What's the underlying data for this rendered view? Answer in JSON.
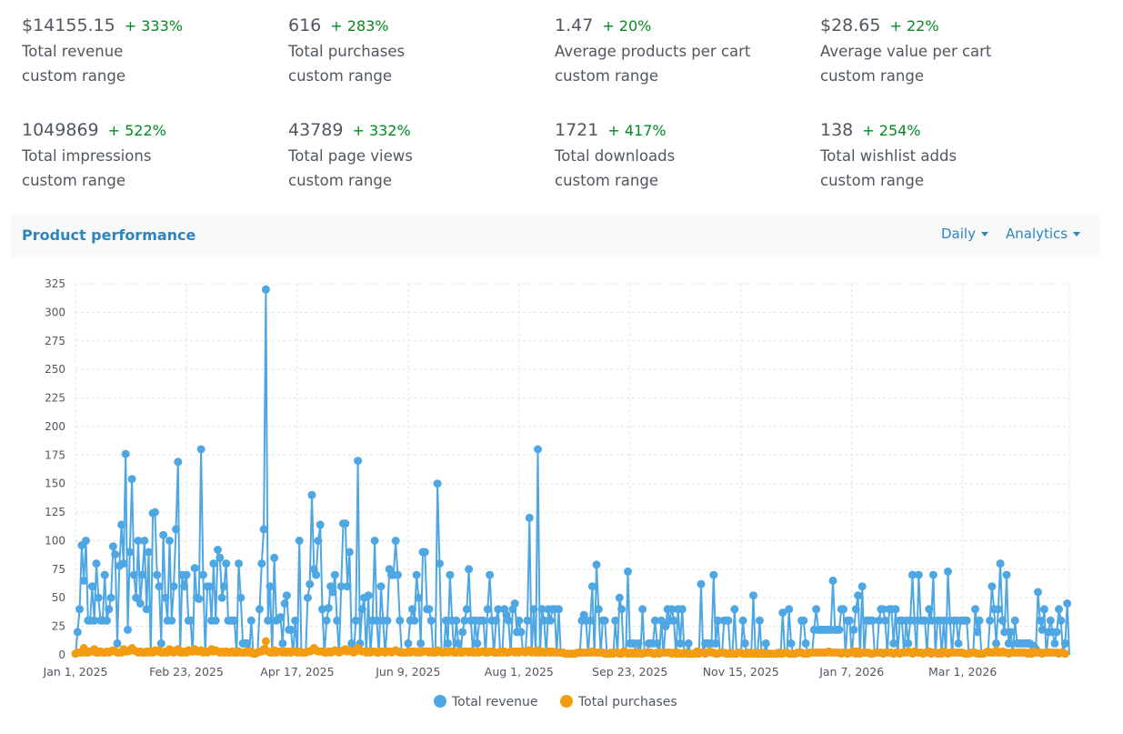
{
  "stats": [
    {
      "value": "$14155.15",
      "change": "+ 333%",
      "label": "Total revenue",
      "range": "custom range"
    },
    {
      "value": "616",
      "change": "+ 283%",
      "label": "Total purchases",
      "range": "custom range"
    },
    {
      "value": "1.47",
      "change": "+ 20%",
      "label": "Average products per cart",
      "range": "custom range"
    },
    {
      "value": "$28.65",
      "change": "+ 22%",
      "label": "Average value per cart",
      "range": "custom range"
    },
    {
      "value": "1049869",
      "change": "+ 522%",
      "label": "Total impressions",
      "range": "custom range"
    },
    {
      "value": "43789",
      "change": "+ 332%",
      "label": "Total page views",
      "range": "custom range"
    },
    {
      "value": "1721",
      "change": "+ 417%",
      "label": "Total downloads",
      "range": "custom range"
    },
    {
      "value": "138",
      "change": "+ 254%",
      "label": "Total wishlist adds",
      "range": "custom range"
    }
  ],
  "panel": {
    "title": "Product performance",
    "interval_label": "Daily",
    "view_label": "Analytics"
  },
  "colors": {
    "revenue": "#4ea6e2",
    "purchases": "#f39c12",
    "change": "#008a20",
    "accent": "#2e85bd"
  },
  "chart_data": {
    "type": "line",
    "title": "",
    "xlabel": "",
    "ylabel": "",
    "x_start": "2025-01-01",
    "x_end": "2026-04-22",
    "x_ticks": [
      "Jan 1, 2025",
      "Feb 23, 2025",
      "Apr 17, 2025",
      "Jun 9, 2025",
      "Aug 1, 2025",
      "Sep 23, 2025",
      "Nov 15, 2025",
      "Jan 7, 2026",
      "Mar 1, 2026"
    ],
    "y_ticks": [
      0,
      25,
      50,
      75,
      100,
      125,
      150,
      175,
      200,
      225,
      250,
      275,
      300,
      325
    ],
    "ylim": [
      0,
      325
    ],
    "grid": true,
    "legend_position": "bottom",
    "series": [
      {
        "name": "Total revenue",
        "values": [
          0,
          20,
          40,
          96,
          65,
          100,
          30,
          30,
          60,
          30,
          80,
          50,
          30,
          30,
          70,
          30,
          40,
          50,
          95,
          88,
          10,
          78,
          114,
          80,
          176,
          22,
          90,
          154,
          70,
          50,
          100,
          45,
          70,
          100,
          40,
          90,
          0,
          124,
          125,
          70,
          60,
          10,
          105,
          50,
          30,
          100,
          30,
          60,
          110,
          169,
          0,
          70,
          60,
          70,
          30,
          30,
          0,
          76,
          50,
          49,
          180,
          70,
          0,
          60,
          60,
          30,
          80,
          30,
          92,
          85,
          50,
          60,
          80,
          30,
          30,
          30,
          30,
          0,
          80,
          50,
          10,
          10,
          10,
          0,
          30,
          0,
          0,
          0,
          40,
          80,
          110,
          320,
          30,
          60,
          0,
          85,
          30,
          31,
          33,
          10,
          45,
          52,
          22,
          22,
          0,
          30,
          0,
          100,
          0,
          0,
          0,
          50,
          62,
          140,
          75,
          70,
          100,
          114,
          40,
          0,
          30,
          41,
          60,
          55,
          70,
          30,
          0,
          60,
          115,
          115,
          60,
          90,
          10,
          0,
          30,
          170,
          10,
          40,
          50,
          0,
          52,
          0,
          30,
          100,
          30,
          0,
          60,
          30,
          0,
          30,
          75,
          70,
          70,
          100,
          70,
          30,
          0,
          0,
          0,
          10,
          30,
          40,
          30,
          70,
          50,
          10,
          90,
          90,
          40,
          40,
          30,
          0,
          0,
          150,
          80,
          0,
          0,
          30,
          10,
          70,
          30,
          0,
          30,
          10,
          0,
          20,
          30,
          40,
          75,
          30,
          0,
          30,
          10,
          30,
          30,
          30,
          0,
          40,
          70,
          30,
          0,
          30,
          40,
          0,
          0,
          40,
          35,
          30,
          0,
          40,
          45,
          20,
          30,
          20,
          0,
          0,
          30,
          120,
          0,
          40,
          0,
          180,
          0,
          40,
          30,
          0,
          40,
          30,
          40,
          40,
          0,
          40,
          0,
          0,
          0,
          0,
          0,
          0,
          0,
          0,
          0,
          0,
          30,
          35,
          30,
          0,
          30,
          60,
          0,
          79,
          40,
          0,
          30,
          30,
          0,
          0,
          0,
          0,
          30,
          0,
          50,
          40,
          0,
          0,
          73,
          10,
          10,
          10,
          0,
          10,
          0,
          40,
          0,
          0,
          10,
          10,
          10,
          30,
          10,
          0,
          30,
          0,
          25,
          40,
          30,
          40,
          30,
          0,
          40,
          10,
          40,
          0,
          0,
          10,
          0,
          0,
          0,
          0,
          0,
          62,
          0,
          10,
          10,
          10,
          10,
          70,
          10,
          30,
          0,
          0,
          30,
          30,
          30,
          0,
          0,
          40,
          0,
          0,
          0,
          30,
          10,
          0,
          0,
          0,
          52,
          0,
          0,
          30,
          0,
          0,
          10,
          0,
          0,
          0,
          0,
          0,
          0,
          0,
          37,
          0,
          0,
          40,
          10,
          0,
          0,
          0,
          0,
          30,
          30,
          10,
          0,
          0,
          0,
          22,
          40,
          22,
          22,
          22,
          22,
          22,
          22,
          22,
          65,
          22,
          22,
          22,
          40,
          40,
          0,
          30,
          30,
          0,
          22,
          40,
          52,
          0,
          60,
          0,
          30,
          30,
          30,
          30,
          0,
          0,
          30,
          40,
          40,
          30,
          0,
          40,
          40,
          10,
          40,
          0,
          30,
          30,
          0,
          30,
          10,
          30,
          70,
          30,
          0,
          70,
          30,
          30,
          30,
          0,
          40,
          30,
          70,
          0,
          30,
          30,
          0,
          30,
          0,
          73,
          30,
          0,
          30,
          30,
          10,
          30,
          30,
          30,
          30,
          0,
          0,
          0,
          40,
          20,
          30,
          0,
          0,
          0,
          0,
          30,
          60,
          40,
          10,
          40,
          80,
          30,
          20,
          70,
          10,
          20,
          0,
          30,
          10,
          10,
          10,
          10,
          10,
          10,
          10,
          0,
          8,
          5,
          55,
          30,
          22,
          40,
          0,
          20,
          30,
          20,
          10,
          20,
          40,
          30,
          0,
          10,
          45,
          0
        ]
      },
      {
        "name": "Total purchases",
        "values": [
          1,
          2,
          2,
          2,
          6,
          2,
          2,
          3,
          3,
          5,
          2,
          2,
          3,
          2,
          2,
          3,
          2,
          3,
          4,
          3,
          2,
          2,
          2,
          5,
          3,
          3,
          4,
          6,
          4,
          3,
          2,
          3,
          2,
          2,
          3,
          2,
          3,
          2,
          4,
          3,
          4,
          2,
          2,
          3,
          2,
          5,
          3,
          2,
          4,
          5,
          2,
          2,
          3,
          2,
          4,
          3,
          3,
          5,
          3,
          3,
          4,
          2,
          3,
          2,
          3,
          5,
          3,
          4,
          3,
          2,
          3,
          2,
          3,
          2,
          2,
          3,
          2,
          2,
          3,
          2,
          2,
          2,
          3,
          2,
          3,
          1,
          1,
          2,
          3,
          3,
          5,
          12,
          3,
          2,
          2,
          4,
          2,
          3,
          3,
          2,
          3,
          2,
          3,
          2,
          3,
          3,
          2,
          3,
          2,
          2,
          2,
          3,
          3,
          4,
          6,
          4,
          3,
          3,
          3,
          2,
          2,
          3,
          2,
          3,
          4,
          3,
          2,
          3,
          4,
          5,
          3,
          4,
          3,
          2,
          3,
          6,
          4,
          3,
          3,
          2,
          3,
          2,
          3,
          3,
          2,
          2,
          3,
          3,
          2,
          3,
          3,
          2,
          3,
          4,
          3,
          2,
          2,
          2,
          2,
          3,
          2,
          3,
          3,
          2,
          3,
          2,
          3,
          3,
          3,
          2,
          3,
          2,
          2,
          4,
          3,
          2,
          2,
          3,
          2,
          3,
          3,
          2,
          2,
          3,
          2,
          2,
          3,
          3,
          2,
          3,
          2,
          2,
          3,
          2,
          3,
          3,
          2,
          2,
          3,
          3,
          2,
          2,
          2,
          3,
          2,
          3,
          2,
          2,
          3,
          3,
          2,
          3,
          2,
          3,
          3,
          2,
          3,
          4,
          2,
          3,
          2,
          4,
          2,
          3,
          2,
          2,
          3,
          2,
          3,
          2,
          2,
          2,
          2,
          2,
          1,
          1,
          1,
          1,
          1,
          1,
          2,
          2,
          2,
          2,
          2,
          2,
          2,
          3,
          2,
          2,
          2,
          2,
          2,
          1,
          1,
          1,
          2,
          1,
          2,
          2,
          1,
          1,
          3,
          2,
          1,
          2,
          1,
          2,
          1,
          2,
          1,
          1,
          2,
          2,
          2,
          2,
          1,
          1,
          2,
          1,
          2,
          2,
          2,
          2,
          2,
          1,
          2,
          1,
          2,
          1,
          1,
          2,
          1,
          1,
          1,
          1,
          1,
          3,
          1,
          2,
          2,
          1,
          2,
          3,
          2,
          2,
          1,
          1,
          2,
          2,
          2,
          1,
          1,
          2,
          1,
          1,
          1,
          2,
          2,
          1,
          1,
          1,
          2,
          1,
          1,
          2,
          1,
          1,
          2,
          1,
          1,
          1,
          1,
          1,
          1,
          1,
          2,
          1,
          1,
          2,
          2,
          1,
          1,
          1,
          1,
          2,
          2,
          2,
          1,
          1,
          1,
          2,
          2,
          2,
          2,
          2,
          2,
          2,
          2,
          2,
          3,
          2,
          2,
          2,
          2,
          2,
          1,
          2,
          2,
          1,
          2,
          2,
          3,
          1,
          3,
          1,
          2,
          2,
          2,
          2,
          1,
          1,
          2,
          2,
          2,
          2,
          1,
          2,
          2,
          2,
          2,
          1,
          2,
          2,
          1,
          2,
          2,
          2,
          3,
          2,
          1,
          3,
          2,
          2,
          2,
          1,
          2,
          2,
          3,
          1,
          2,
          2,
          1,
          2,
          1,
          3,
          2,
          1,
          2,
          2,
          2,
          2,
          2,
          2,
          2,
          1,
          1,
          1,
          2,
          2,
          2,
          1,
          1,
          1,
          1,
          2,
          3,
          2,
          2,
          2,
          4,
          2,
          2,
          3,
          2,
          2,
          1,
          2,
          2,
          2,
          2,
          2,
          2,
          2,
          2,
          1,
          2,
          1,
          3,
          2,
          2,
          2,
          1,
          2,
          2,
          2,
          2,
          2,
          2,
          2,
          1,
          2,
          2,
          1
        ]
      }
    ]
  }
}
